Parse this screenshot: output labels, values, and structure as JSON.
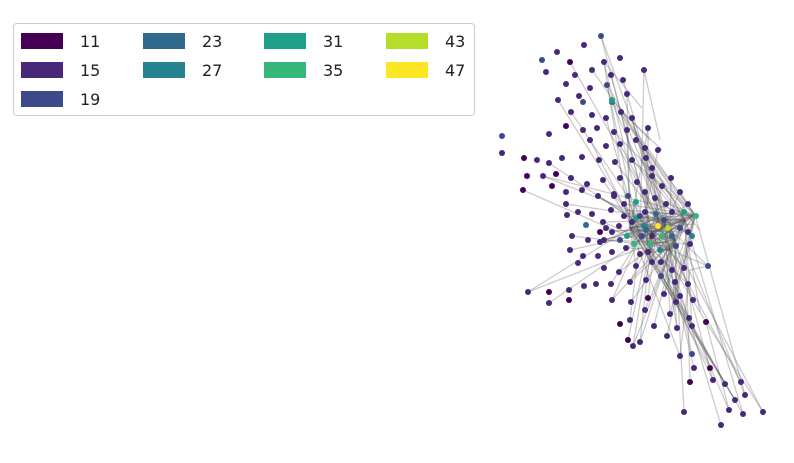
{
  "legend": {
    "items": [
      {
        "label": "11",
        "color": "#440154"
      },
      {
        "label": "15",
        "color": "#482878"
      },
      {
        "label": "19",
        "color": "#3e4989"
      },
      {
        "label": "23",
        "color": "#31688e"
      },
      {
        "label": "27",
        "color": "#26828e"
      },
      {
        "label": "31",
        "color": "#1f9e89"
      },
      {
        "label": "35",
        "color": "#35b779"
      },
      {
        "label": "43",
        "color": "#b5de2b"
      },
      {
        "label": "47",
        "color": "#fde725"
      }
    ]
  },
  "graph": {
    "edge_color": "#555555",
    "node_colors": [
      "#440154",
      "#482878",
      "#3e4989",
      "#31688e",
      "#26828e",
      "#1f9e89",
      "#35b779",
      "#b5de2b",
      "#fde725"
    ]
  }
}
